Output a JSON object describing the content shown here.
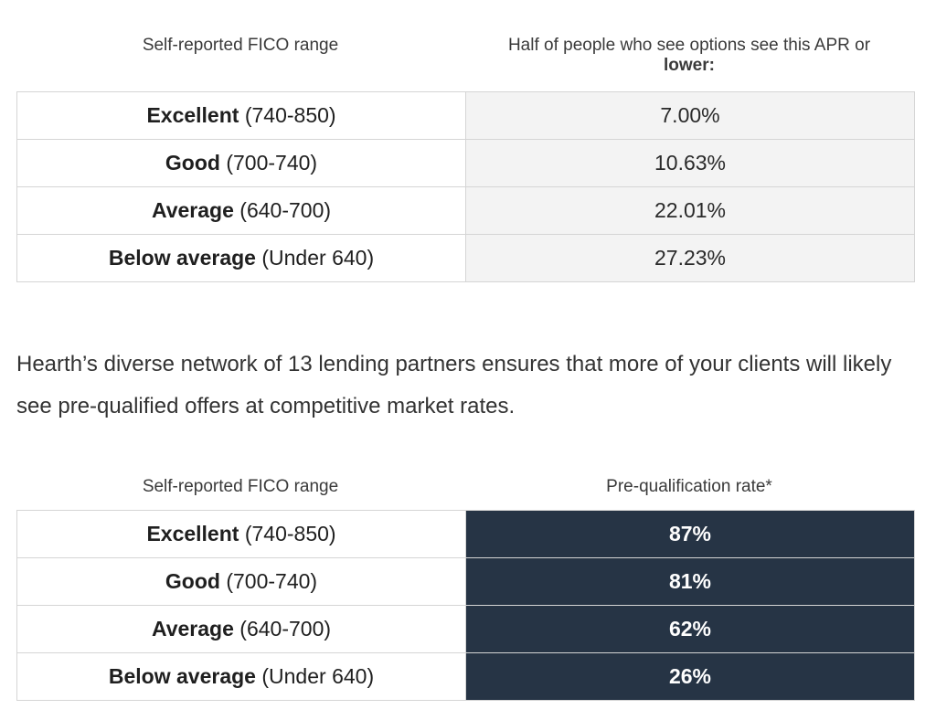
{
  "apr_table": {
    "header_left": "Self-reported FICO range",
    "header_right_line1": "Half of people who see options see this APR or",
    "header_right_line2": "lower:",
    "rows": [
      {
        "category": "Excellent",
        "range": "(740-850)",
        "value": "7.00%"
      },
      {
        "category": "Good",
        "range": "(700-740)",
        "value": "10.63%"
      },
      {
        "category": "Average",
        "range": "(640-700)",
        "value": "22.01%"
      },
      {
        "category": "Below average",
        "range": "(Under 640)",
        "value": "27.23%"
      }
    ]
  },
  "paragraph": {
    "text": "Hearth’s diverse network of 13 lending partners ensures that more of your clients will likely see pre-qualified offers at competitive market rates."
  },
  "prequal_table": {
    "header_left": "Self-reported FICO range",
    "header_right": "Pre-qualification rate*",
    "rows": [
      {
        "category": "Excellent",
        "range": "(740-850)",
        "value": "87%"
      },
      {
        "category": "Good",
        "range": "(700-740)",
        "value": "81%"
      },
      {
        "category": "Average",
        "range": "(640-700)",
        "value": "62%"
      },
      {
        "category": "Below average",
        "range": "(Under 640)",
        "value": "26%"
      }
    ]
  },
  "colors": {
    "prequal_cell_bg": "#263445",
    "apr_cell_bg": "#f3f3f3",
    "border": "#d5d5d5"
  }
}
